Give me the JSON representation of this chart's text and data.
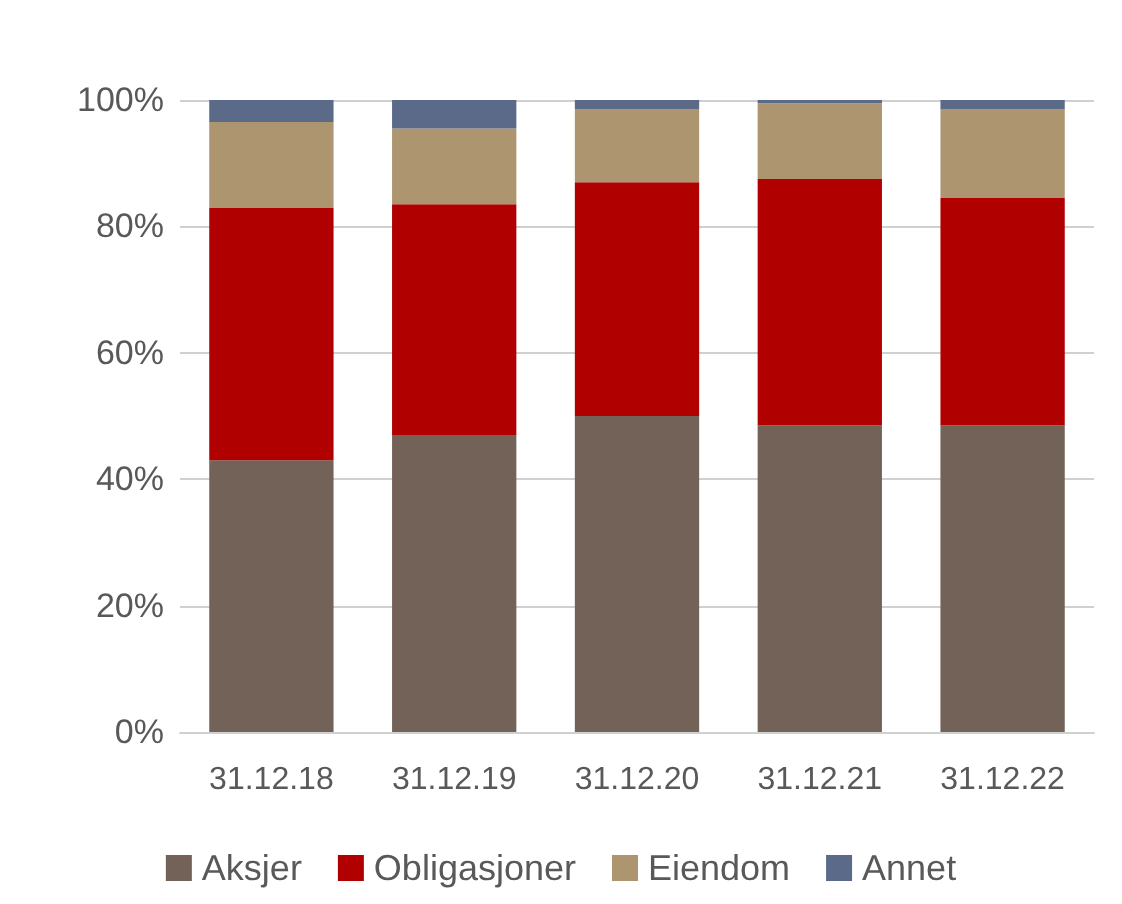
{
  "chart_data": {
    "type": "bar",
    "stacked": true,
    "categories": [
      "31.12.18",
      "31.12.19",
      "31.12.20",
      "31.12.21",
      "31.12.22"
    ],
    "series": [
      {
        "name": "Aksjer",
        "color": "#736257",
        "values": [
          43,
          47,
          50,
          48.5,
          48.5
        ]
      },
      {
        "name": "Obligasjoner",
        "color": "#b00000",
        "values": [
          40,
          36.5,
          37,
          39,
          36
        ]
      },
      {
        "name": "Eiendom",
        "color": "#ad9570",
        "values": [
          13.5,
          12,
          11.5,
          12,
          14
        ]
      },
      {
        "name": "Annet",
        "color": "#5a6a88",
        "values": [
          3.5,
          4.5,
          1.5,
          0.5,
          1.5
        ]
      }
    ],
    "ylim": [
      0,
      100
    ],
    "yticks": [
      {
        "value": 0,
        "label": "0%"
      },
      {
        "value": 20,
        "label": "20%"
      },
      {
        "value": 40,
        "label": "40%"
      },
      {
        "value": 60,
        "label": "60%"
      },
      {
        "value": 80,
        "label": "80%"
      },
      {
        "value": 100,
        "label": "100%"
      }
    ],
    "grid": "y",
    "legend": "bottom"
  }
}
